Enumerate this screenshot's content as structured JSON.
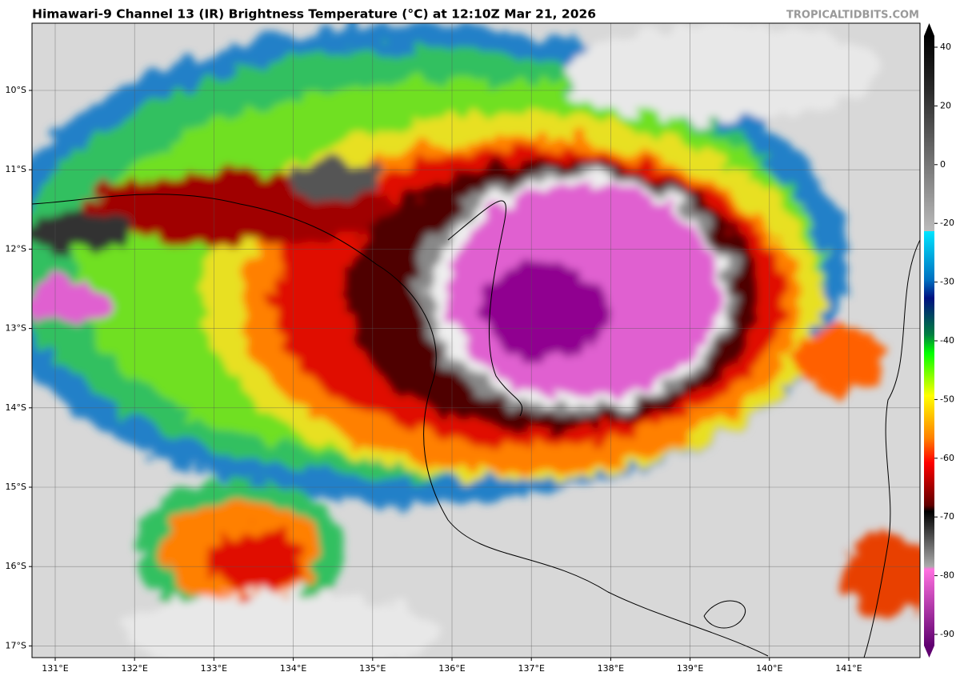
{
  "title": "Himawari-9 Channel 13 (IR) Brightness Temperature (°C) at 12:10Z Mar 21, 2026",
  "source": "TROPICALTIDBITS.COM",
  "map": {
    "lat_labels": [
      "10°S",
      "11°S",
      "12°S",
      "13°S",
      "14°S",
      "15°S",
      "16°S",
      "17°S"
    ],
    "lon_labels": [
      "131°E",
      "132°E",
      "133°E",
      "134°E",
      "135°E",
      "136°E",
      "137°E",
      "138°E",
      "139°E",
      "140°E",
      "141°E"
    ]
  },
  "colorbar": {
    "ticks": [
      40,
      20,
      0,
      -20,
      -30,
      -40,
      -50,
      -60,
      -70,
      -80,
      -90
    ]
  }
}
